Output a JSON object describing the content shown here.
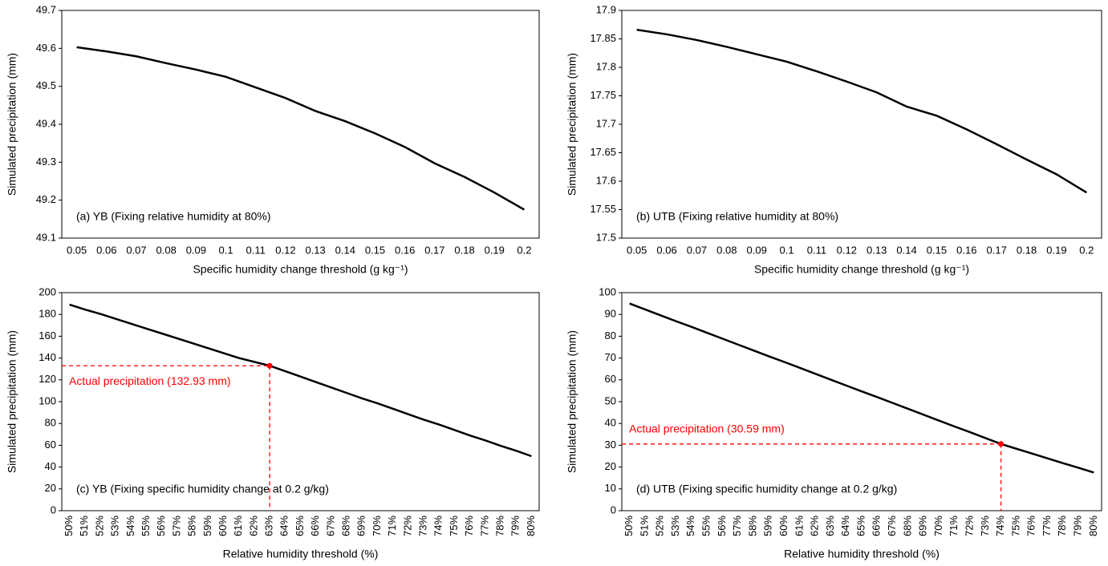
{
  "chart_data": [
    {
      "type": "line",
      "title": "(a) YB (Fixing relative humidity at 80%)",
      "ylabel": "Simulated precipitation (mm)",
      "xlabel": "Specific humidity change threshold (g kg⁻¹)",
      "color": "#000000",
      "categories": [
        "0.05",
        "0.06",
        "0.07",
        "0.08",
        "0.09",
        "0.1",
        "0.11",
        "0.12",
        "0.13",
        "0.14",
        "0.15",
        "0.16",
        "0.17",
        "0.18",
        "0.19",
        "0.2"
      ],
      "values": [
        49.603,
        49.592,
        49.579,
        49.561,
        49.544,
        49.525,
        49.497,
        49.469,
        49.435,
        49.408,
        49.376,
        49.34,
        49.297,
        49.261,
        49.22,
        49.175
      ],
      "ylim": [
        49.1,
        49.7
      ],
      "yticks": [
        49.1,
        49.2,
        49.3,
        49.4,
        49.5,
        49.6,
        49.7
      ]
    },
    {
      "type": "line",
      "title": "(b) UTB (Fixing relative humidity at 80%)",
      "ylabel": "Simulated precipitation (mm)",
      "xlabel": "Specific humidity change threshold (g kg⁻¹)",
      "color": "#000000",
      "categories": [
        "0.05",
        "0.06",
        "0.07",
        "0.08",
        "0.09",
        "0.1",
        "0.11",
        "0.12",
        "0.13",
        "0.14",
        "0.15",
        "0.16",
        "0.17",
        "0.18",
        "0.19",
        "0.2"
      ],
      "values": [
        17.866,
        17.858,
        17.848,
        17.836,
        17.823,
        17.81,
        17.793,
        17.775,
        17.756,
        17.731,
        17.715,
        17.691,
        17.665,
        17.638,
        17.612,
        17.58
      ],
      "ylim": [
        17.5,
        17.9
      ],
      "yticks": [
        17.5,
        17.55,
        17.6,
        17.65,
        17.7,
        17.75,
        17.8,
        17.85,
        17.9
      ]
    },
    {
      "type": "line",
      "title": "(c) YB (Fixing specific humidity change at 0.2 g/kg)",
      "ylabel": "Simulated precipitation (mm)",
      "xlabel": "Relative humidity threshold (%)",
      "color": "#000000",
      "categories": [
        "50%",
        "51%",
        "52%",
        "53%",
        "54%",
        "55%",
        "56%",
        "57%",
        "58%",
        "59%",
        "60%",
        "61%",
        "62%",
        "63%",
        "64%",
        "65%",
        "66%",
        "67%",
        "68%",
        "69%",
        "70%",
        "71%",
        "72%",
        "73%",
        "74%",
        "75%",
        "76%",
        "77%",
        "78%",
        "79%",
        "80%"
      ],
      "values": [
        189,
        184.5,
        180.5,
        176,
        171.5,
        167,
        162.5,
        158,
        153.5,
        149,
        144.5,
        140,
        136.5,
        132.93,
        128,
        123,
        118,
        113,
        108,
        103,
        98.5,
        93.5,
        88.5,
        83.5,
        79,
        74,
        69,
        64.5,
        59.5,
        55,
        50
      ],
      "ylim": [
        0,
        200
      ],
      "yticks": [
        0,
        20,
        40,
        60,
        80,
        100,
        120,
        140,
        160,
        180,
        200
      ],
      "marker": {
        "x": "63%",
        "y": 132.93,
        "label": "Actual precipitation (132.93 mm)",
        "color": "#ff0000"
      }
    },
    {
      "type": "line",
      "title": "(d) UTB (Fixing specific humidity change at 0.2 g/kg)",
      "ylabel": "Simulated precipitation (mm)",
      "xlabel": "Relative humidity threshold (%)",
      "color": "#000000",
      "categories": [
        "50%",
        "51%",
        "52%",
        "53%",
        "54%",
        "55%",
        "56%",
        "57%",
        "58%",
        "59%",
        "60%",
        "61%",
        "62%",
        "63%",
        "64%",
        "65%",
        "66%",
        "67%",
        "68%",
        "69%",
        "70%",
        "71%",
        "72%",
        "73%",
        "74%",
        "75%",
        "76%",
        "77%",
        "78%",
        "79%",
        "80%"
      ],
      "values": [
        95,
        92.3,
        89.6,
        86.9,
        84.3,
        81.6,
        78.9,
        76.2,
        73.5,
        70.8,
        68.2,
        65.5,
        62.8,
        60.1,
        57.4,
        54.7,
        52.1,
        49.4,
        46.7,
        44.0,
        41.3,
        38.6,
        36.0,
        33.3,
        30.59,
        28.4,
        26.2,
        24.0,
        21.8,
        19.7,
        17.5
      ],
      "ylim": [
        0,
        100
      ],
      "yticks": [
        0,
        10,
        20,
        30,
        40,
        50,
        60,
        70,
        80,
        90,
        100
      ],
      "marker": {
        "x": "74%",
        "y": 30.59,
        "label": "Actual precipitation (30.59 mm)",
        "color": "#ff0000"
      }
    }
  ]
}
